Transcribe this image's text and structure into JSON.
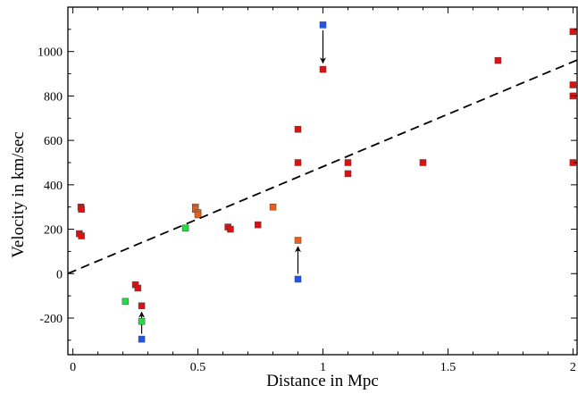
{
  "chart_data": {
    "type": "scatter",
    "title": "",
    "xlabel": "Distance in Mpc",
    "ylabel": "Velocity in km/sec",
    "xlim": [
      -0.02,
      2.02
    ],
    "ylim": [
      -365,
      1200
    ],
    "xticks": [
      0,
      0.5,
      1,
      1.5,
      2
    ],
    "xtick_labels": [
      "0",
      "0.5",
      "1",
      "1.5",
      "2"
    ],
    "yticks": [
      -200,
      0,
      200,
      400,
      600,
      800,
      1000
    ],
    "ytick_labels": [
      "-200",
      "0",
      "200",
      "400",
      "600",
      "800",
      "1000"
    ],
    "grid": false,
    "legend": "none",
    "fit_line": {
      "style": "dashed",
      "slope": 472,
      "intercept": 10
    },
    "series": [
      {
        "color": "#dd1111",
        "points": [
          {
            "x": 0.032,
            "y": 300
          },
          {
            "x": 0.034,
            "y": 290
          },
          {
            "x": 0.026,
            "y": 180
          },
          {
            "x": 0.034,
            "y": 170
          },
          {
            "x": 0.25,
            "y": -50
          },
          {
            "x": 0.26,
            "y": -65
          },
          {
            "x": 0.275,
            "y": -145
          },
          {
            "x": 0.62,
            "y": 210
          },
          {
            "x": 0.63,
            "y": 200
          },
          {
            "x": 0.74,
            "y": 220
          },
          {
            "x": 0.9,
            "y": 650
          },
          {
            "x": 0.9,
            "y": 500
          },
          {
            "x": 1.0,
            "y": 920
          },
          {
            "x": 1.1,
            "y": 500
          },
          {
            "x": 1.1,
            "y": 450
          },
          {
            "x": 1.4,
            "y": 500
          },
          {
            "x": 1.7,
            "y": 960
          },
          {
            "x": 2.0,
            "y": 1090
          },
          {
            "x": 2.0,
            "y": 850
          },
          {
            "x": 2.0,
            "y": 800
          },
          {
            "x": 2.0,
            "y": 500
          }
        ]
      },
      {
        "color": "#e8601c",
        "points": [
          {
            "x": 0.49,
            "y": 300
          },
          {
            "x": 0.49,
            "y": 290
          },
          {
            "x": 0.5,
            "y": 275
          },
          {
            "x": 0.5,
            "y": 265
          },
          {
            "x": 0.8,
            "y": 300
          },
          {
            "x": 0.9,
            "y": 150
          }
        ]
      },
      {
        "color": "#22dd44",
        "points": [
          {
            "x": 0.21,
            "y": -125
          },
          {
            "x": 0.45,
            "y": 205
          },
          {
            "x": 0.275,
            "y": -215
          }
        ]
      },
      {
        "color": "#2255ee",
        "points": [
          {
            "x": 0.9,
            "y": -25
          },
          {
            "x": 1.0,
            "y": 1120
          },
          {
            "x": 0.275,
            "y": -295
          }
        ]
      }
    ],
    "arrows": [
      {
        "from": [
          1.0,
          1120
        ],
        "to": [
          1.0,
          920
        ]
      },
      {
        "from": [
          0.9,
          -25
        ],
        "to": [
          0.9,
          150
        ]
      },
      {
        "from": [
          0.275,
          -295
        ],
        "to": [
          0.275,
          -145
        ]
      }
    ]
  }
}
